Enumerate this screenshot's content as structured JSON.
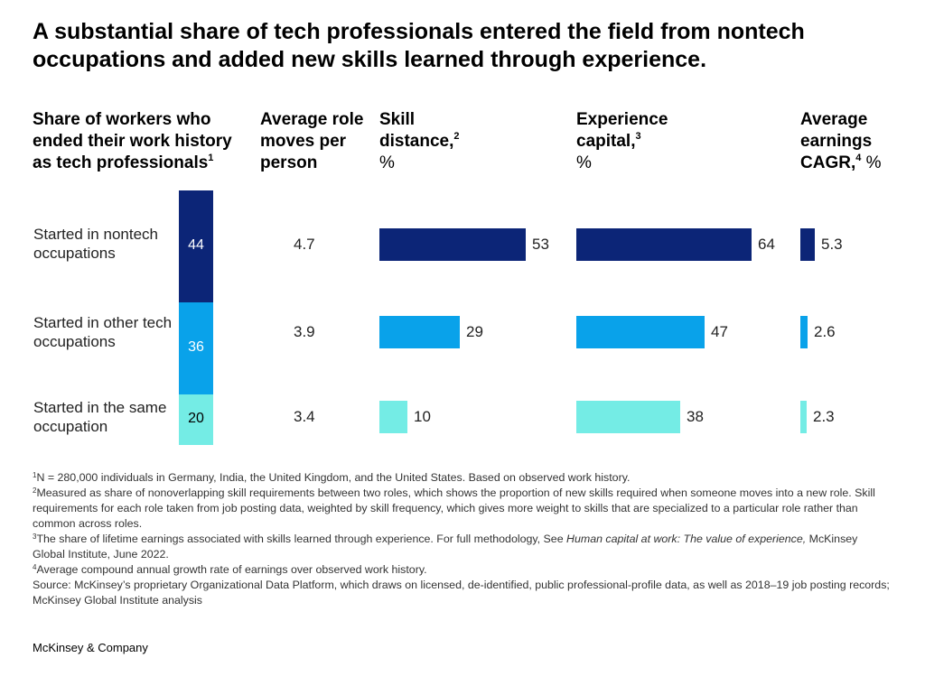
{
  "title": "A substantial share of tech professionals entered the field from nontech occupations and added new skills learned through experience.",
  "columns": {
    "share": {
      "label": "Share of workers who ended their work history as tech professionals",
      "sup": "1"
    },
    "moves": {
      "label": "Average role moves per person"
    },
    "skill": {
      "label": "Skill distance,",
      "sup": "2",
      "unit": "%"
    },
    "experience": {
      "label": "Experience capital,",
      "sup": "3",
      "unit": "%"
    },
    "earnings": {
      "label": "Average earnings CAGR,",
      "sup": "4",
      "unit": " %"
    }
  },
  "colors": {
    "nontech": "#0c2577",
    "other_tech": "#09a2ea",
    "same": "#74ece5"
  },
  "chart_data": {
    "type": "bar",
    "categories": [
      "Started in nontech occupations",
      "Started in other tech occupations",
      "Started in the same occupation"
    ],
    "series": [
      {
        "name": "Share of workers who ended their work history as tech professionals",
        "values": [
          44,
          36,
          20
        ]
      },
      {
        "name": "Average role moves per person",
        "values": [
          4.7,
          3.9,
          3.4
        ]
      },
      {
        "name": "Skill distance, %",
        "values": [
          53,
          29,
          10
        ]
      },
      {
        "name": "Experience capital, %",
        "values": [
          64,
          47,
          38
        ]
      },
      {
        "name": "Average earnings CAGR, %",
        "values": [
          5.3,
          2.6,
          2.3
        ]
      }
    ]
  },
  "footnotes": {
    "n1": {
      "sup": "1",
      "text": "N = 280,000 individuals in Germany, India, the United Kingdom, and the United States. Based on observed work history."
    },
    "n2": {
      "sup": "2",
      "text": "Measured as share of nonoverlapping skill requirements between two roles, which shows the proportion of new skills required when someone moves into a new role. Skill requirements for each role taken from job posting data, weighted by skill frequency, which gives more weight to skills that are specialized to a particular role rather than common across roles."
    },
    "n3": {
      "sup": "3",
      "text_before": "The share of lifetime earnings associated with skills learned through experience. For full methodology, See ",
      "italic": "Human capital at work: The value of experience,",
      "text_after": " McKinsey Global Institute, June 2022."
    },
    "n4": {
      "sup": "4",
      "text": "Average compound annual growth rate of earnings over observed work history."
    },
    "source": "Source: McKinsey’s proprietary Organizational Data Platform, which draws on licensed, de-identified, public professional-profile data, as well as 2018–19 job posting records; McKinsey Global Institute analysis"
  },
  "brand": "McKinsey & Company"
}
